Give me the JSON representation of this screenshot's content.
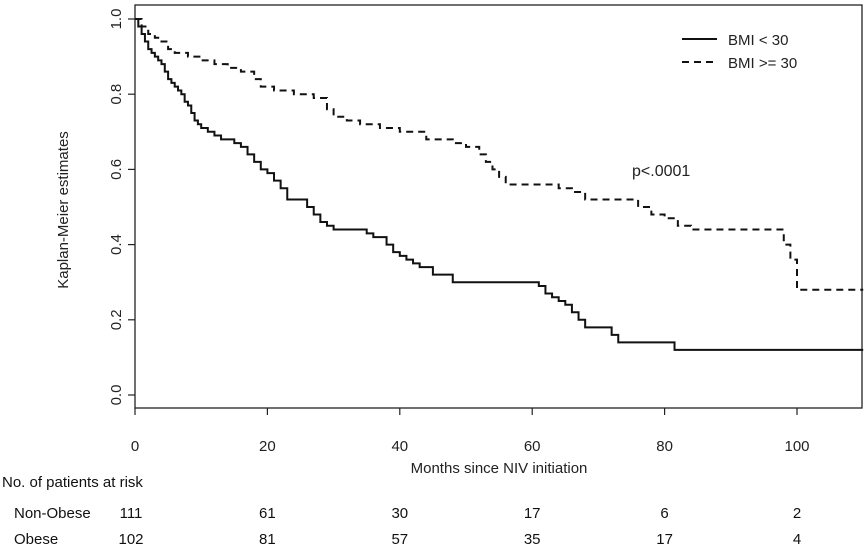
{
  "chart_data": {
    "type": "line",
    "title": "",
    "xlabel": "Months since NIV initiation",
    "ylabel": "Kaplan-Meier estimates",
    "xlim": [
      0,
      110
    ],
    "ylim": [
      0,
      1
    ],
    "x_ticks": [
      "0",
      "20",
      "40",
      "60",
      "80",
      "100"
    ],
    "y_ticks": [
      "0.0",
      "0.2",
      "0.4",
      "0.6",
      "0.8",
      "1.0"
    ],
    "grid": false,
    "legend_position": "top-right",
    "annotation": "p<.0001",
    "series": [
      {
        "name": "BMI < 30",
        "line_style": "solid",
        "color": "#111111",
        "x": [
          0,
          0.5,
          1,
          1.5,
          2,
          2.5,
          3,
          3.5,
          4,
          4.5,
          5,
          5.5,
          6,
          6.5,
          7,
          7.5,
          8,
          8.5,
          9,
          9.5,
          10,
          11,
          12,
          13,
          15,
          16,
          17,
          18,
          19,
          20,
          21,
          22,
          23,
          26,
          27,
          28,
          29,
          30,
          31,
          35,
          36,
          38,
          39,
          40,
          41,
          42,
          43,
          44,
          45,
          48,
          60,
          61,
          62,
          63,
          64,
          65,
          66,
          67,
          68,
          72,
          73,
          81.5,
          110
        ],
        "y": [
          1.0,
          0.98,
          0.96,
          0.94,
          0.92,
          0.91,
          0.9,
          0.89,
          0.88,
          0.86,
          0.84,
          0.83,
          0.82,
          0.81,
          0.8,
          0.78,
          0.77,
          0.75,
          0.73,
          0.72,
          0.71,
          0.7,
          0.69,
          0.68,
          0.67,
          0.66,
          0.64,
          0.62,
          0.6,
          0.59,
          0.57,
          0.55,
          0.52,
          0.5,
          0.48,
          0.46,
          0.45,
          0.44,
          0.44,
          0.43,
          0.42,
          0.4,
          0.38,
          0.37,
          0.36,
          0.35,
          0.34,
          0.34,
          0.32,
          0.3,
          0.3,
          0.29,
          0.27,
          0.26,
          0.25,
          0.24,
          0.22,
          0.2,
          0.18,
          0.16,
          0.14,
          0.12,
          0.12
        ]
      },
      {
        "name": "BMI >= 30",
        "line_style": "dashed",
        "color": "#111111",
        "x": [
          0,
          1,
          2,
          3,
          4,
          5,
          6,
          8,
          10,
          12,
          14,
          16,
          18,
          19,
          21,
          24,
          27,
          29,
          30,
          32,
          34,
          37,
          40,
          44,
          48,
          50,
          52,
          53,
          54,
          55,
          56,
          57,
          59,
          64,
          66,
          68,
          76,
          78,
          80,
          82,
          84,
          98,
          99,
          100,
          110
        ],
        "y": [
          1.0,
          0.98,
          0.96,
          0.95,
          0.94,
          0.92,
          0.91,
          0.9,
          0.89,
          0.88,
          0.87,
          0.86,
          0.84,
          0.82,
          0.81,
          0.8,
          0.79,
          0.76,
          0.74,
          0.73,
          0.72,
          0.71,
          0.7,
          0.68,
          0.67,
          0.66,
          0.64,
          0.62,
          0.6,
          0.58,
          0.56,
          0.56,
          0.56,
          0.55,
          0.54,
          0.52,
          0.5,
          0.48,
          0.47,
          0.45,
          0.44,
          0.4,
          0.36,
          0.28,
          0.28
        ]
      }
    ]
  },
  "risk_table": {
    "title": "No. of patients at risk",
    "time_points": [
      0,
      20,
      40,
      60,
      80,
      100
    ],
    "rows": [
      {
        "label": "Non-Obese",
        "values": [
          "111",
          "61",
          "30",
          "17",
          "6",
          "2"
        ]
      },
      {
        "label": "Obese",
        "values": [
          "102",
          "81",
          "57",
          "35",
          "17",
          "4"
        ]
      }
    ]
  }
}
